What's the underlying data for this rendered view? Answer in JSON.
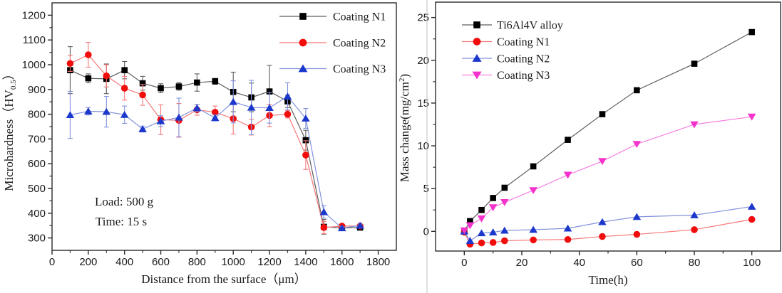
{
  "figure": {
    "background": "#ffffff",
    "divider_color": "#c2c2c2",
    "frame_color": "#2b2b2b"
  },
  "chart_data": [
    {
      "type": "line",
      "panel": "left",
      "title": "",
      "xlabel": "Distance from the surface（μm）",
      "ylabel": "Microhardness（HV0.5）",
      "ylabel_parts": [
        {
          "t": "Microhardness（HV"
        },
        {
          "t": "0.5",
          "style": "sub"
        },
        {
          "t": "）"
        }
      ],
      "xlim": [
        0,
        1900
      ],
      "ylim": [
        250,
        1250
      ],
      "xticks": [
        0,
        200,
        400,
        600,
        800,
        1000,
        1200,
        1400,
        1600,
        1800
      ],
      "x_minor_step": 100,
      "yticks": [
        300,
        400,
        500,
        600,
        700,
        800,
        900,
        1000,
        1100,
        1200
      ],
      "y_minor_step": 50,
      "grid": false,
      "legend_position": "top-right",
      "x": [
        100,
        200,
        300,
        400,
        500,
        600,
        700,
        800,
        900,
        1000,
        1100,
        1200,
        1300,
        1400,
        1500,
        1600,
        1700
      ],
      "series": [
        {
          "name": "Coating N1",
          "marker": "square",
          "color": "#000000",
          "line_color": "#5c5c5c",
          "values": [
            978,
            945,
            943,
            978,
            925,
            905,
            912,
            928,
            933,
            890,
            868,
            892,
            852,
            695,
            345,
            340,
            342
          ],
          "errors": [
            95,
            18,
            60,
            35,
            28,
            18,
            15,
            35,
            12,
            80,
            58,
            105,
            25,
            40,
            30,
            8,
            8
          ]
        },
        {
          "name": "Coating N2",
          "marker": "circle",
          "color": "#f20d0d",
          "line_color": "#f57878",
          "values": [
            1005,
            1040,
            955,
            905,
            878,
            778,
            775,
            818,
            808,
            782,
            748,
            795,
            800,
            635,
            342,
            348,
            348
          ],
          "errors": [
            32,
            50,
            45,
            48,
            42,
            60,
            68,
            22,
            25,
            62,
            32,
            45,
            15,
            58,
            25,
            6,
            6
          ]
        },
        {
          "name": "Coating N3",
          "marker": "triangle-up",
          "color": "#1c38cc",
          "line_color": "#8292dc",
          "values": [
            797,
            812,
            810,
            798,
            740,
            772,
            787,
            825,
            785,
            850,
            827,
            826,
            872,
            783,
            405,
            340,
            350
          ],
          "errors": [
            95,
            15,
            62,
            35,
            12,
            22,
            78,
            15,
            12,
            85,
            110,
            62,
            55,
            40,
            25,
            6,
            6
          ]
        }
      ],
      "annotations": [
        {
          "text": "Load: 500 g"
        },
        {
          "text": "Time: 15 s"
        }
      ]
    },
    {
      "type": "line",
      "panel": "right",
      "title": "",
      "xlabel": "Time(h)",
      "ylabel": "Mass change(mg/cm2)",
      "ylabel_parts": [
        {
          "t": "Mass change(mg/cm"
        },
        {
          "t": "2",
          "style": "sup"
        },
        {
          "t": ")"
        }
      ],
      "xlim": [
        -10,
        110
      ],
      "ylim": [
        -2.3,
        26.8
      ],
      "xticks": [
        0,
        20,
        40,
        60,
        80,
        100
      ],
      "x_minor_step": 10,
      "yticks": [
        0,
        5,
        10,
        15,
        20,
        25
      ],
      "y_minor_step": 2.5,
      "grid": false,
      "legend_position": "top-left",
      "x": [
        0,
        2,
        6,
        10,
        14,
        24,
        36,
        48,
        60,
        80,
        100
      ],
      "series": [
        {
          "name": "Ti6Al4V alloy",
          "marker": "square",
          "color": "#000000",
          "line_color": "#5c5c5c",
          "values": [
            0.0,
            1.2,
            2.5,
            3.9,
            5.1,
            7.6,
            10.7,
            13.7,
            16.5,
            19.6,
            23.3
          ]
        },
        {
          "name": "Coating N1",
          "marker": "circle",
          "color": "#f20d0d",
          "line_color": "#f57878",
          "values": [
            -0.1,
            -1.5,
            -1.35,
            -1.3,
            -1.1,
            -1.0,
            -0.95,
            -0.6,
            -0.35,
            0.2,
            1.4
          ]
        },
        {
          "name": "Coating N2",
          "marker": "triangle-up",
          "color": "#1c38cc",
          "line_color": "#8292dc",
          "values": [
            0.0,
            -1.1,
            -0.2,
            -0.1,
            0.1,
            0.2,
            0.35,
            1.1,
            1.7,
            1.9,
            2.9
          ]
        },
        {
          "name": "Coating N3",
          "marker": "triangle-down",
          "color": "#f533cc",
          "line_color": "#f97fe0",
          "values": [
            0.1,
            0.7,
            1.5,
            2.8,
            3.4,
            4.8,
            6.6,
            8.2,
            10.2,
            12.5,
            13.4
          ]
        }
      ],
      "annotations": []
    }
  ]
}
